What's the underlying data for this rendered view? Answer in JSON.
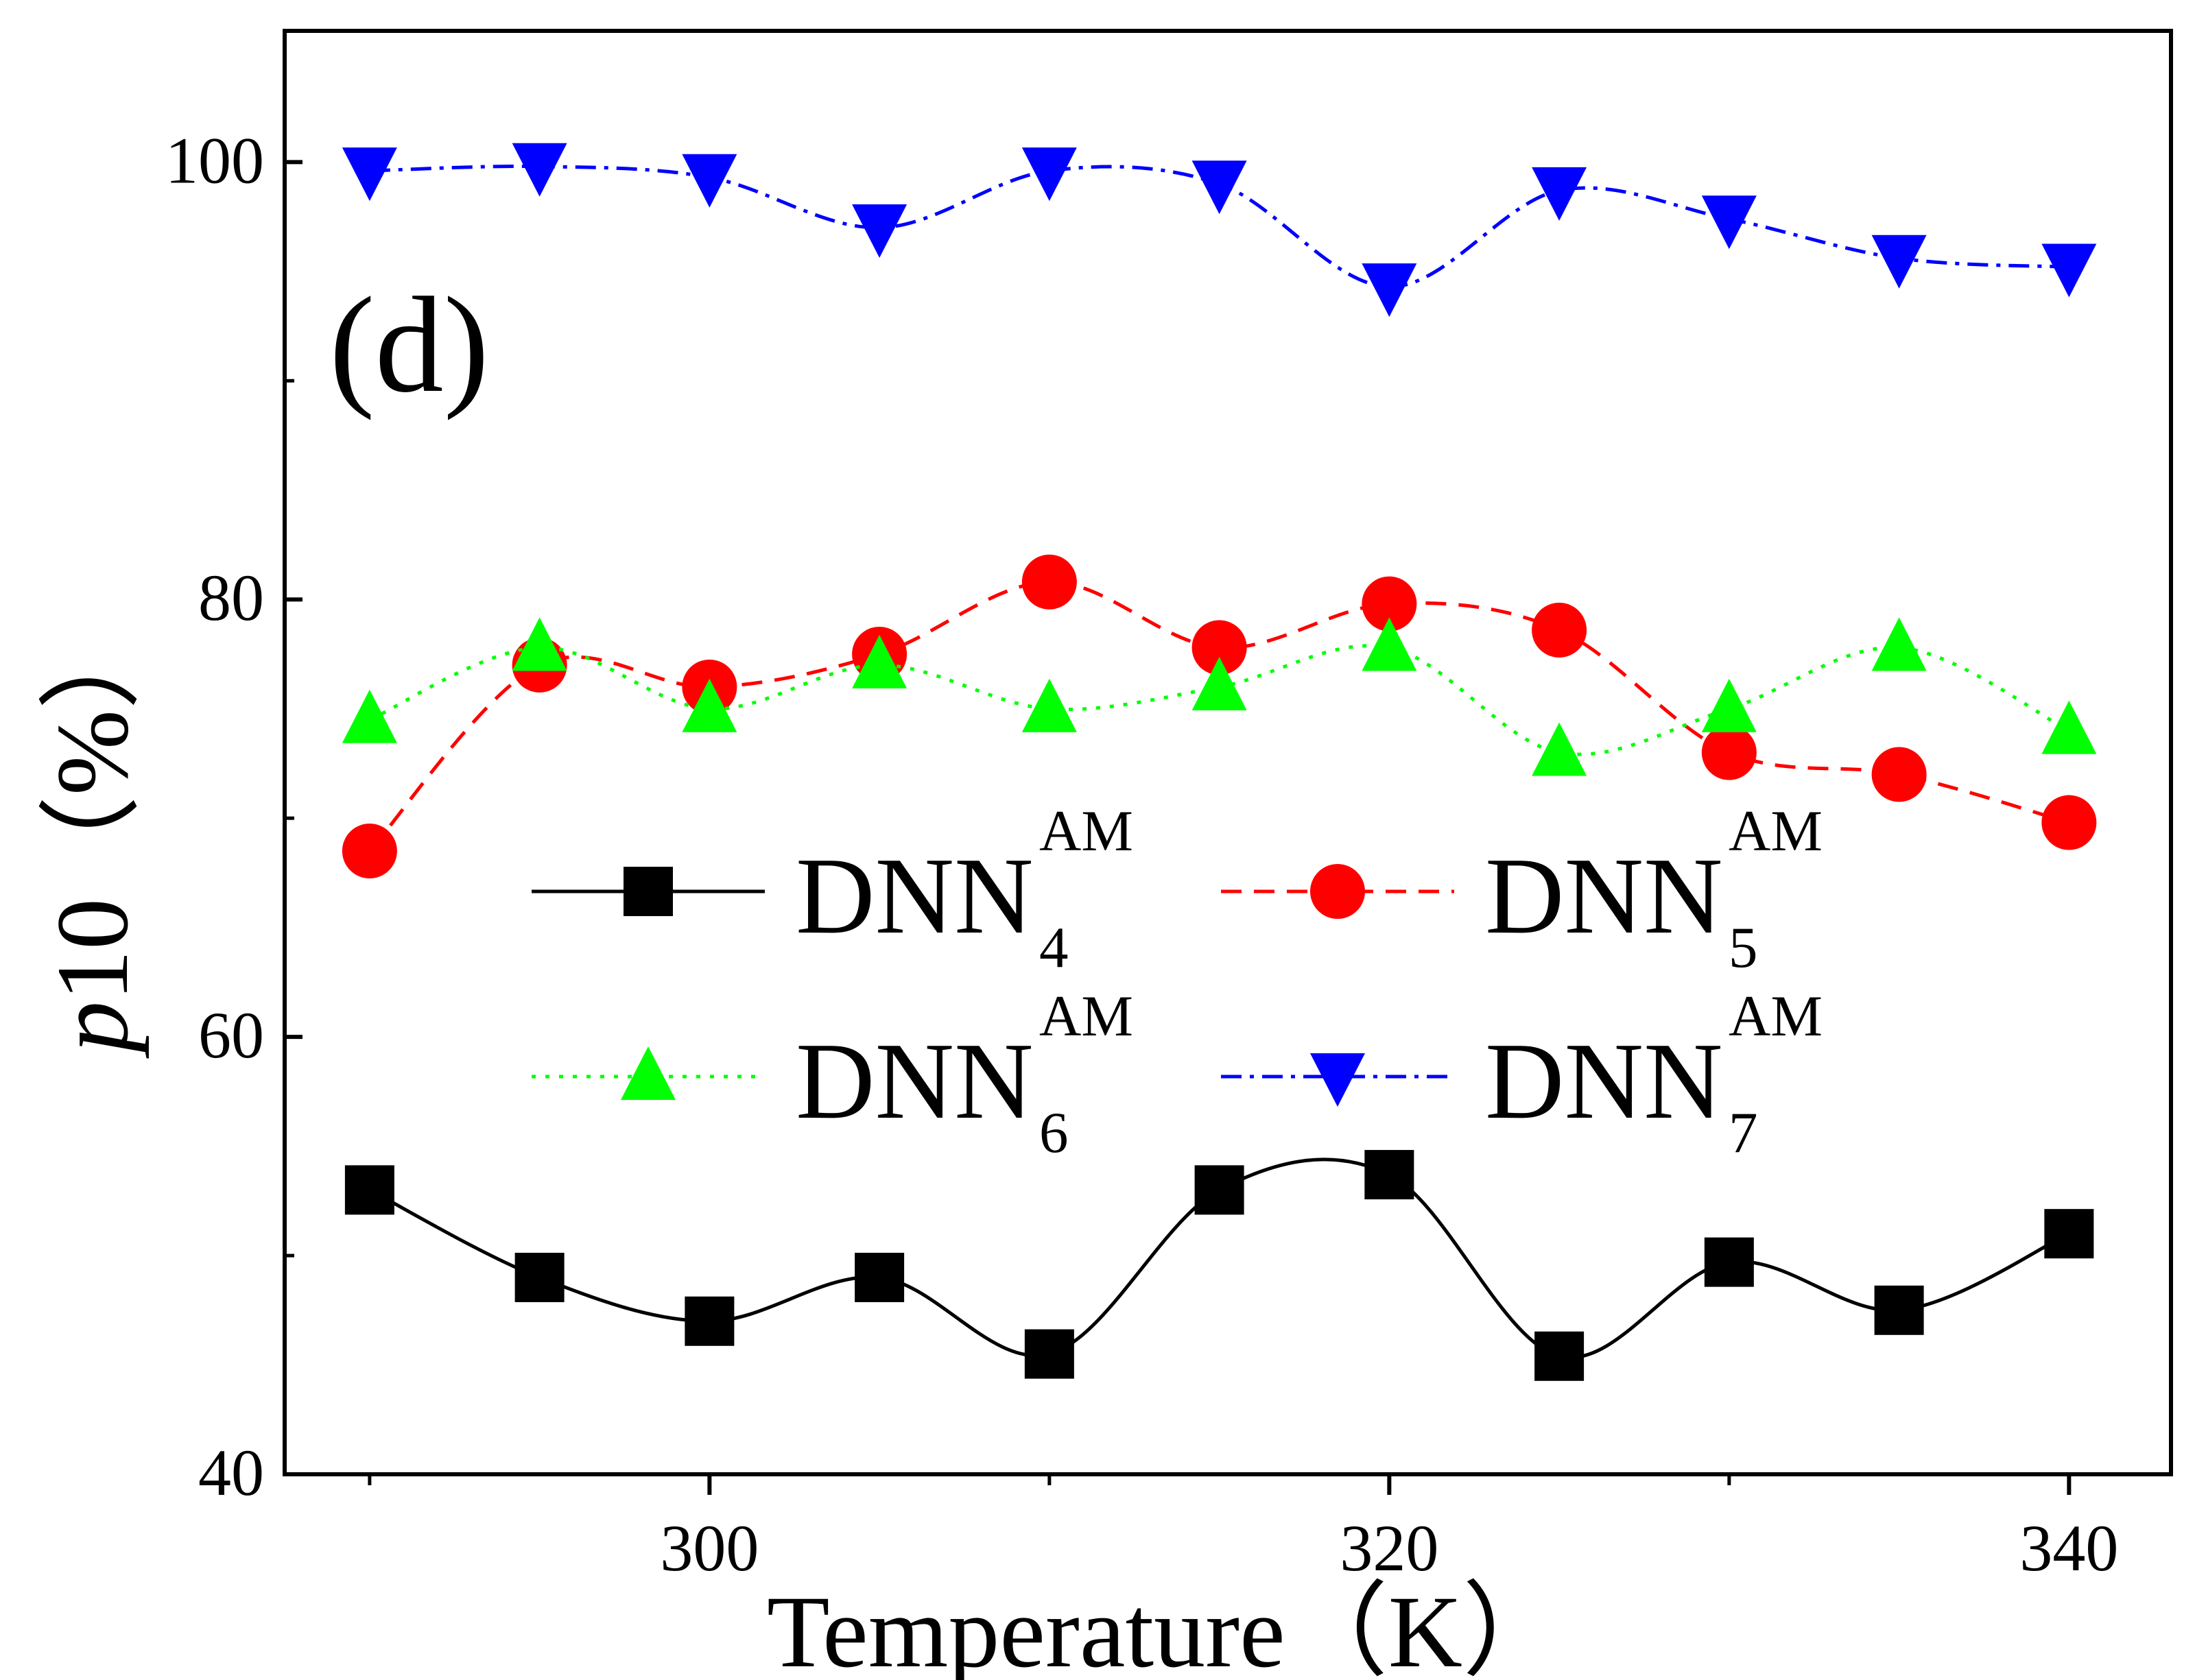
{
  "chart_data": {
    "type": "line",
    "panel_label": "(d)",
    "xlabel": "Temperature（K）",
    "ylabel_var": "p",
    "ylabel_rest": "10（%）",
    "xlim": [
      287.5,
      343
    ],
    "ylim": [
      40,
      106
    ],
    "xticks": [
      300,
      320,
      340
    ],
    "xticks_minor": [
      290,
      310,
      330
    ],
    "yticks": [
      40,
      60,
      80,
      100
    ],
    "yticks_minor": [
      50,
      70,
      90
    ],
    "x": [
      290,
      295,
      300,
      305,
      310,
      315,
      320,
      325,
      330,
      335,
      340
    ],
    "series": [
      {
        "name": "DNN",
        "sub": "4",
        "sup": "AM",
        "color": "#000000",
        "marker": "square",
        "dash": "solid",
        "values": [
          53.0,
          49.0,
          47.0,
          49.0,
          45.5,
          53.0,
          53.7,
          45.4,
          49.7,
          47.5,
          51.0
        ]
      },
      {
        "name": "DNN",
        "sub": "5",
        "sup": "AM",
        "color": "#ff0000",
        "marker": "circle",
        "dash": "dashed",
        "values": [
          68.5,
          77.0,
          76.0,
          77.5,
          80.8,
          77.8,
          79.8,
          78.6,
          73.0,
          72.0,
          69.8
        ]
      },
      {
        "name": "DNN",
        "sub": "6",
        "sup": "AM",
        "color": "#00ff00",
        "marker": "triangle-up",
        "dash": "dotted",
        "values": [
          74.5,
          77.8,
          75.0,
          77.0,
          75.0,
          76.0,
          77.8,
          73.0,
          75.0,
          77.8,
          74.0
        ]
      },
      {
        "name": "DNN",
        "sub": "7",
        "sup": "AM",
        "color": "#0000ff",
        "marker": "triangle-down",
        "dash": "dashdot",
        "values": [
          99.6,
          99.8,
          99.3,
          97.0,
          99.6,
          99.0,
          94.3,
          98.7,
          97.4,
          95.6,
          95.2
        ]
      }
    ],
    "legend_placement": "center"
  }
}
